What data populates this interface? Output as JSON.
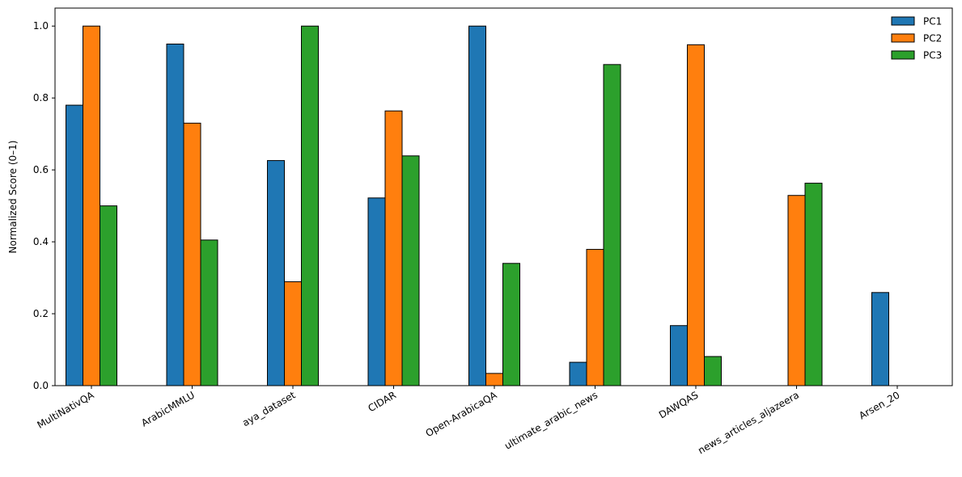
{
  "chart_data": {
    "type": "bar",
    "title": "",
    "xlabel": "",
    "ylabel": "Normalized Score (0–1)",
    "ylim": [
      0,
      1.05
    ],
    "yticks": [
      "0.0",
      "0.2",
      "0.4",
      "0.6",
      "0.8",
      "1.0"
    ],
    "categories": [
      "MultiNativQA",
      "ArabicMMLU",
      "aya_dataset",
      "CIDAR",
      "Open-ArabicaQA",
      "ultimate_arabic_news",
      "DAWQAS",
      "news_articles_aljazeera",
      "Arsen_20"
    ],
    "series": [
      {
        "name": "PC1",
        "color": "#1f77b4",
        "values": [
          0.78,
          0.95,
          0.626,
          0.522,
          1.0,
          0.065,
          0.167,
          0.0,
          0.259
        ]
      },
      {
        "name": "PC2",
        "color": "#ff7f0e",
        "values": [
          1.0,
          0.73,
          0.289,
          0.764,
          0.034,
          0.379,
          0.948,
          0.529,
          0.0
        ]
      },
      {
        "name": "PC3",
        "color": "#2ca02c",
        "values": [
          0.5,
          0.405,
          1.0,
          0.639,
          0.34,
          0.893,
          0.081,
          0.563,
          0.0
        ]
      }
    ],
    "grid": false,
    "legend": "top-right"
  }
}
